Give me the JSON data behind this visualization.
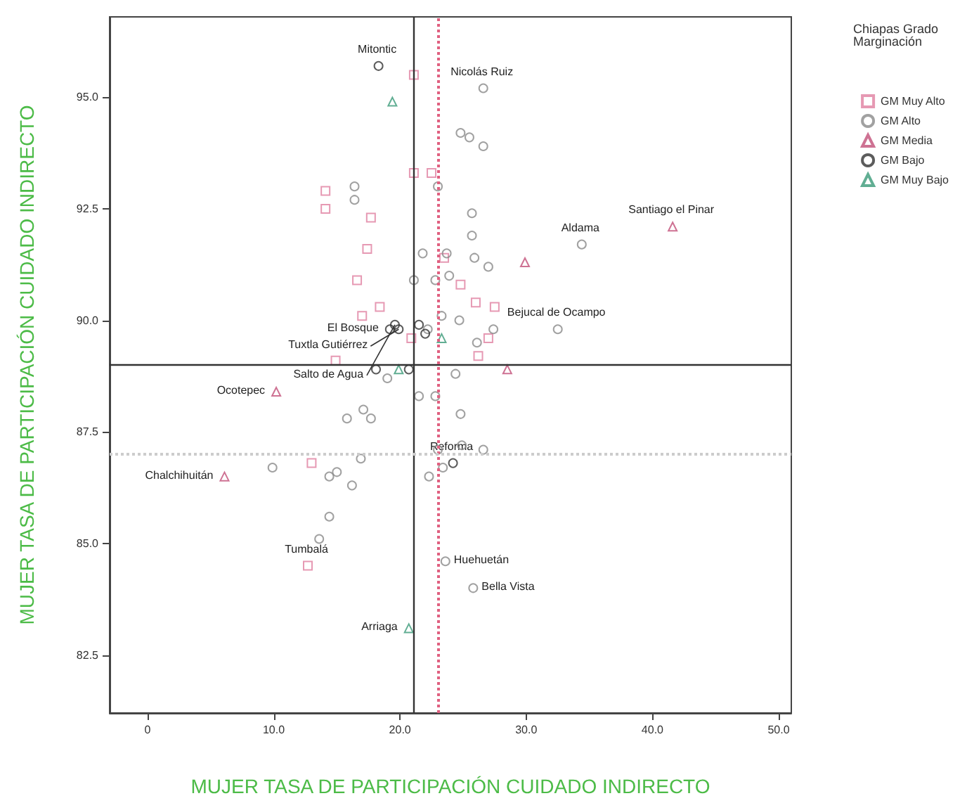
{
  "chart_data": {
    "type": "scatter",
    "xlabel": "MUJER TASA DE PARTICIPACIÓN CUIDADO INDIRECTO",
    "ylabel": "MUJER TASA DE PARTICIPACIÓN CUIDADO INDIRECTO",
    "legend_title": "Chiapas Grado Marginación",
    "legend": "right",
    "grid": false,
    "xlim": [
      -3,
      51
    ],
    "ylim": [
      81.2,
      96.8
    ],
    "xticks": [
      0,
      {
        "value": 10,
        "label": "10.0"
      },
      {
        "value": 20,
        "label": "20.0"
      },
      {
        "value": 30,
        "label": "30.0"
      },
      {
        "value": 40,
        "label": "40.0"
      },
      {
        "value": 50,
        "label": "50.0"
      }
    ],
    "yticks": [
      82.5,
      {
        "value": 85,
        "label": "85.0"
      },
      87.5,
      {
        "value": 90,
        "label": "90.0"
      },
      92.5,
      {
        "value": 95,
        "label": "95.0"
      }
    ],
    "series": [
      {
        "name": "GM Muy Alto",
        "color": "#e07fa0",
        "marker": "square",
        "x": [
          14.1,
          14.1,
          17.7,
          17.4,
          21.1,
          22.5,
          16.6,
          18.4,
          17.0,
          23.5,
          24.8,
          26.0,
          27.5,
          27.0,
          26.2,
          14.9,
          13.0,
          20.9,
          21.1,
          12.7
        ],
        "values": [
          92.9,
          92.5,
          92.3,
          91.6,
          93.3,
          93.3,
          90.9,
          90.3,
          90.1,
          91.4,
          90.8,
          90.4,
          90.3,
          89.6,
          89.2,
          89.1,
          86.8,
          89.6,
          95.5,
          84.5
        ]
      },
      {
        "name": "GM Alto",
        "color": "#8a8a8a",
        "marker": "circle",
        "x": [
          16.4,
          16.4,
          23.0,
          24.8,
          25.5,
          26.6,
          25.7,
          25.7,
          23.7,
          25.9,
          27.0,
          21.8,
          21.1,
          22.8,
          23.9,
          23.3,
          22.2,
          24.7,
          26.1,
          27.4,
          19.0,
          21.5,
          24.4,
          22.8,
          24.8,
          24.9,
          26.6,
          23.0,
          23.4,
          22.3,
          17.1,
          15.8,
          17.7,
          14.4,
          15.0,
          14.4,
          13.6,
          16.2,
          16.9,
          9.9,
          26.6,
          23.6,
          25.8,
          34.4,
          32.5
        ],
        "values": [
          93.0,
          92.7,
          93.0,
          94.2,
          94.1,
          93.9,
          92.4,
          91.9,
          91.5,
          91.4,
          91.2,
          91.5,
          90.9,
          90.9,
          91.0,
          90.1,
          89.8,
          90.0,
          89.5,
          89.8,
          88.7,
          88.3,
          88.8,
          88.3,
          87.9,
          87.2,
          87.1,
          87.1,
          86.7,
          86.5,
          88.0,
          87.8,
          87.8,
          86.5,
          86.6,
          85.6,
          85.1,
          86.3,
          86.9,
          86.7,
          95.2,
          84.6,
          84.0,
          91.7,
          89.8
        ]
      },
      {
        "name": "GM Media",
        "color": "#c24f78",
        "marker": "triangle",
        "x": [
          29.9,
          41.6,
          10.2,
          6.1,
          28.5
        ],
        "values": [
          91.3,
          92.1,
          88.4,
          86.5,
          88.9
        ]
      },
      {
        "name": "GM Bajo",
        "color": "#333333",
        "marker": "circle",
        "x": [
          19.2,
          19.6,
          19.9,
          21.5,
          22.0,
          20.7,
          18.1,
          24.2,
          18.3
        ],
        "values": [
          89.8,
          89.9,
          89.8,
          89.9,
          89.7,
          88.9,
          88.9,
          86.8,
          95.7
        ]
      },
      {
        "name": "GM Muy Bajo",
        "color": "#3a9a78",
        "marker": "triangle",
        "x": [
          19.4,
          20.7,
          23.3,
          19.9
        ],
        "values": [
          94.9,
          83.1,
          89.6,
          88.9
        ]
      }
    ],
    "ref_lines": [
      {
        "axis": "x",
        "value": 21.1,
        "color": "#333333",
        "line_style": "solid"
      },
      {
        "axis": "y",
        "value": 89.0,
        "color": "#333333",
        "line_style": "solid"
      },
      {
        "axis": "x",
        "value": 23.0,
        "color": "#e06080",
        "line_style": "dotted"
      },
      {
        "axis": "y",
        "value": 87.0,
        "color": "#cccccc",
        "line_style": "dotted"
      }
    ],
    "annotations": [
      {
        "text": "Mitontic",
        "x": 18.3,
        "y": 95.7
      },
      {
        "text": "Nicolás Ruiz",
        "x": 26.6,
        "y": 95.2
      },
      {
        "text": "Santiago el Pinar",
        "x": 41.6,
        "y": 92.1
      },
      {
        "text": "Aldama",
        "x": 34.4,
        "y": 91.7
      },
      {
        "text": "Tuxtla Gutiérrez",
        "x": 19.9,
        "y": 89.8
      },
      {
        "text": "Salto de Agua",
        "x": 19.6,
        "y": 89.9
      },
      {
        "text": "El Bosque",
        "x": 19.2,
        "y": 89.8
      },
      {
        "text": "Bejucal de Ocampo",
        "x": 32.5,
        "y": 89.8
      },
      {
        "text": "Ocotepec",
        "x": 10.2,
        "y": 88.4
      },
      {
        "text": "Reforma",
        "x": 24.2,
        "y": 86.8
      },
      {
        "text": "Chalchihuitán",
        "x": 6.1,
        "y": 86.5
      },
      {
        "text": "Huehuetán",
        "x": 23.6,
        "y": 84.6
      },
      {
        "text": "Bella Vista",
        "x": 25.8,
        "y": 84.0
      },
      {
        "text": "Tumbalá",
        "x": 12.7,
        "y": 84.5
      },
      {
        "text": "Arriaga",
        "x": 20.7,
        "y": 83.1
      }
    ]
  }
}
